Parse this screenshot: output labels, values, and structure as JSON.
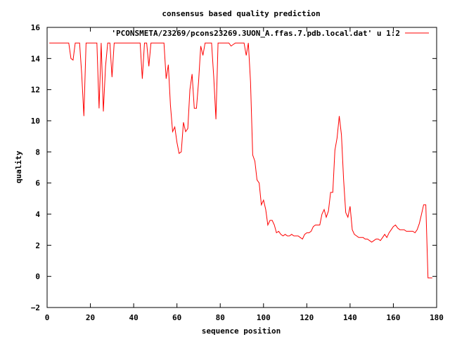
{
  "chart_data": {
    "type": "line",
    "title": "consensus based quality prediction",
    "xlabel": "sequence position",
    "ylabel": "quality",
    "xlim": [
      0,
      180
    ],
    "ylim": [
      -2,
      16
    ],
    "xticks": [
      0,
      20,
      40,
      60,
      80,
      100,
      120,
      140,
      160,
      180
    ],
    "yticks": [
      -2,
      0,
      2,
      4,
      6,
      8,
      10,
      12,
      14,
      16
    ],
    "grid": false,
    "legend_position": "top-right",
    "series": [
      {
        "name": "'PCONSMETA/23269/pcons23269.3UON_A.ffas.7.pdb.local.dat' u 1:2",
        "color": "#ff0000",
        "points": [
          [
            1,
            15
          ],
          [
            2,
            15
          ],
          [
            3,
            15
          ],
          [
            4,
            15
          ],
          [
            5,
            15
          ],
          [
            6,
            15
          ],
          [
            7,
            15
          ],
          [
            8,
            15
          ],
          [
            9,
            15
          ],
          [
            10,
            15
          ],
          [
            11,
            14
          ],
          [
            12,
            13.9
          ],
          [
            13,
            15
          ],
          [
            14,
            15
          ],
          [
            15,
            15
          ],
          [
            16,
            13
          ],
          [
            17,
            10.3
          ],
          [
            18,
            15
          ],
          [
            19,
            15
          ],
          [
            20,
            15
          ],
          [
            21,
            15
          ],
          [
            22,
            15
          ],
          [
            23,
            15
          ],
          [
            24,
            10.8
          ],
          [
            25,
            15
          ],
          [
            26,
            10.6
          ],
          [
            27,
            13.5
          ],
          [
            28,
            15
          ],
          [
            29,
            15
          ],
          [
            30,
            12.8
          ],
          [
            31,
            15
          ],
          [
            32,
            15
          ],
          [
            33,
            15
          ],
          [
            34,
            15
          ],
          [
            35,
            15
          ],
          [
            36,
            15
          ],
          [
            37,
            15
          ],
          [
            38,
            15
          ],
          [
            39,
            15
          ],
          [
            40,
            15
          ],
          [
            41,
            15
          ],
          [
            42,
            15
          ],
          [
            43,
            15
          ],
          [
            44,
            12.7
          ],
          [
            45,
            15
          ],
          [
            46,
            15
          ],
          [
            47,
            13.5
          ],
          [
            48,
            15
          ],
          [
            49,
            15
          ],
          [
            50,
            15
          ],
          [
            51,
            15
          ],
          [
            52,
            15
          ],
          [
            53,
            15
          ],
          [
            54,
            15
          ],
          [
            55,
            12.7
          ],
          [
            56,
            13.6
          ],
          [
            57,
            11
          ],
          [
            58,
            9.3
          ],
          [
            59,
            9.6
          ],
          [
            60,
            8.6
          ],
          [
            61,
            7.9
          ],
          [
            62,
            8
          ],
          [
            63,
            9.9
          ],
          [
            64,
            9.3
          ],
          [
            65,
            9.5
          ],
          [
            66,
            12
          ],
          [
            67,
            13
          ],
          [
            68,
            10.8
          ],
          [
            69,
            10.8
          ],
          [
            70,
            12.5
          ],
          [
            71,
            14.8
          ],
          [
            72,
            14.2
          ],
          [
            73,
            15
          ],
          [
            74,
            15
          ],
          [
            75,
            15
          ],
          [
            76,
            15
          ],
          [
            77,
            12.8
          ],
          [
            78,
            10.1
          ],
          [
            79,
            15
          ],
          [
            80,
            15
          ],
          [
            81,
            15
          ],
          [
            82,
            15
          ],
          [
            83,
            15
          ],
          [
            84,
            15
          ],
          [
            85,
            14.8
          ],
          [
            86,
            14.9
          ],
          [
            87,
            15
          ],
          [
            88,
            15
          ],
          [
            89,
            15
          ],
          [
            90,
            15
          ],
          [
            91,
            15
          ],
          [
            92,
            14.2
          ],
          [
            93,
            15
          ],
          [
            94,
            12.5
          ],
          [
            95,
            7.8
          ],
          [
            96,
            7.4
          ],
          [
            97,
            6.2
          ],
          [
            98,
            6
          ],
          [
            99,
            4.6
          ],
          [
            100,
            4.9
          ],
          [
            101,
            4.3
          ],
          [
            102,
            3.3
          ],
          [
            103,
            3.6
          ],
          [
            104,
            3.6
          ],
          [
            105,
            3.3
          ],
          [
            106,
            2.8
          ],
          [
            107,
            2.9
          ],
          [
            108,
            2.7
          ],
          [
            109,
            2.6
          ],
          [
            110,
            2.7
          ],
          [
            111,
            2.6
          ],
          [
            112,
            2.6
          ],
          [
            113,
            2.7
          ],
          [
            114,
            2.6
          ],
          [
            115,
            2.6
          ],
          [
            116,
            2.6
          ],
          [
            117,
            2.5
          ],
          [
            118,
            2.4
          ],
          [
            119,
            2.7
          ],
          [
            120,
            2.8
          ],
          [
            121,
            2.8
          ],
          [
            122,
            2.9
          ],
          [
            123,
            3.2
          ],
          [
            124,
            3.3
          ],
          [
            125,
            3.3
          ],
          [
            126,
            3.3
          ],
          [
            127,
            4
          ],
          [
            128,
            4.3
          ],
          [
            129,
            3.8
          ],
          [
            130,
            4.2
          ],
          [
            131,
            5.4
          ],
          [
            132,
            5.4
          ],
          [
            133,
            8.1
          ],
          [
            134,
            8.9
          ],
          [
            135,
            10.3
          ],
          [
            136,
            9.1
          ],
          [
            137,
            6.2
          ],
          [
            138,
            4.1
          ],
          [
            139,
            3.8
          ],
          [
            140,
            4.5
          ],
          [
            141,
            3
          ],
          [
            142,
            2.7
          ],
          [
            143,
            2.6
          ],
          [
            144,
            2.5
          ],
          [
            145,
            2.5
          ],
          [
            146,
            2.5
          ],
          [
            147,
            2.4
          ],
          [
            148,
            2.4
          ],
          [
            149,
            2.3
          ],
          [
            150,
            2.2
          ],
          [
            151,
            2.3
          ],
          [
            152,
            2.4
          ],
          [
            153,
            2.4
          ],
          [
            154,
            2.3
          ],
          [
            155,
            2.5
          ],
          [
            156,
            2.7
          ],
          [
            157,
            2.5
          ],
          [
            158,
            2.8
          ],
          [
            159,
            3
          ],
          [
            160,
            3.2
          ],
          [
            161,
            3.3
          ],
          [
            162,
            3.1
          ],
          [
            163,
            3
          ],
          [
            164,
            3
          ],
          [
            165,
            3
          ],
          [
            166,
            2.9
          ],
          [
            167,
            2.9
          ],
          [
            168,
            2.9
          ],
          [
            169,
            2.9
          ],
          [
            170,
            2.8
          ],
          [
            171,
            3
          ],
          [
            172,
            3.4
          ],
          [
            173,
            4
          ],
          [
            174,
            4.6
          ],
          [
            175,
            4.6
          ],
          [
            176,
            -0.1
          ],
          [
            177,
            -0.1
          ],
          [
            178,
            -0.1
          ]
        ]
      }
    ]
  }
}
